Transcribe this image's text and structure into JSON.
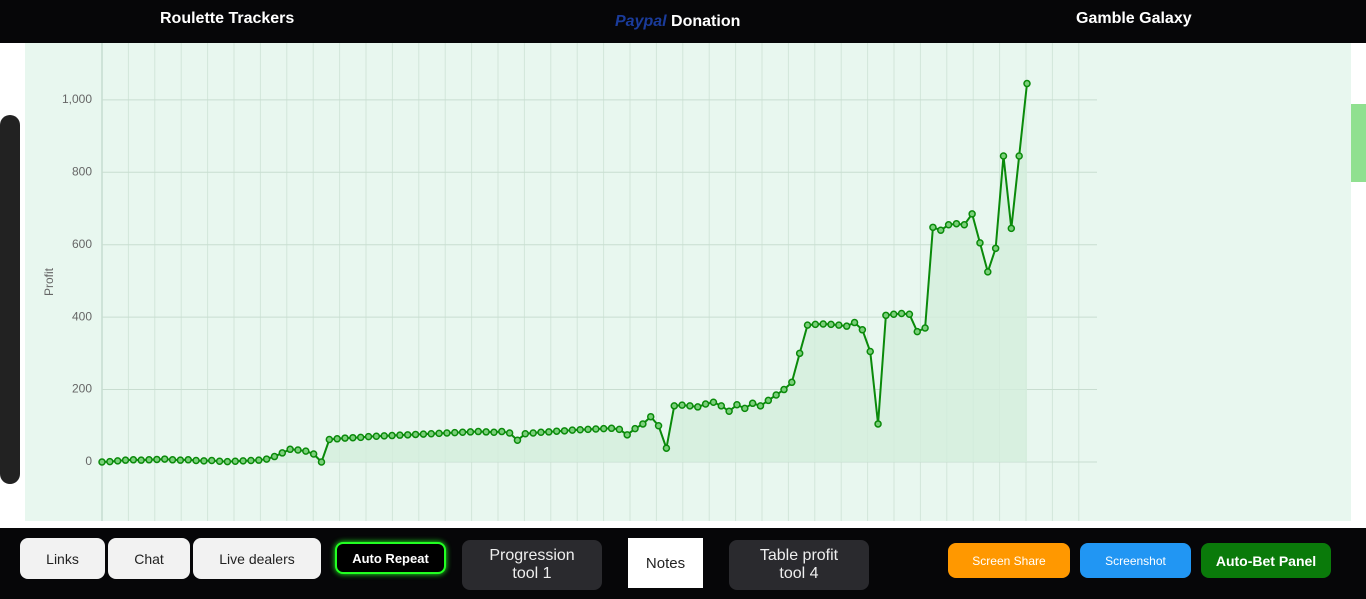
{
  "header": {
    "left": "Roulette Trackers",
    "brand": "Paypal",
    "center": "Donation",
    "right": "Gamble Galaxy"
  },
  "chart_data": {
    "type": "line",
    "y_label": "Profit",
    "color": "#0a8a0a",
    "fill": "#d3eedc",
    "values": [
      0,
      1,
      3,
      5,
      6,
      5,
      6,
      7,
      8,
      6,
      5,
      6,
      4,
      3,
      4,
      2,
      1,
      2,
      3,
      4,
      5,
      8,
      15,
      25,
      35,
      33,
      30,
      22,
      0,
      62,
      64,
      66,
      67,
      68,
      70,
      71,
      72,
      73,
      74,
      75,
      76,
      77,
      78,
      79,
      80,
      81,
      82,
      83,
      84,
      83,
      82,
      84,
      80,
      60,
      78,
      80,
      82,
      83,
      85,
      86,
      88,
      89,
      90,
      91,
      92,
      93,
      90,
      75,
      92,
      105,
      125,
      100,
      38,
      155,
      157,
      155,
      152,
      160,
      165,
      155,
      140,
      158,
      148,
      162,
      155,
      170,
      185,
      200,
      220,
      300,
      378,
      380,
      381,
      380,
      378,
      375,
      385,
      365,
      305,
      105,
      405,
      408,
      410,
      408,
      360,
      370,
      648,
      640,
      655,
      658,
      655,
      685,
      605,
      525,
      590,
      845,
      645,
      845,
      1045
    ],
    "ylim": [
      -163,
      1157
    ],
    "yticks": [
      0,
      200,
      400,
      600,
      800,
      {
        "value": 1000,
        "label": "1,000"
      }
    ],
    "grid": true
  },
  "buttons": [
    "Links",
    "Chat",
    "Live dealers",
    "Auto Repeat",
    "Progression tool 1",
    "Notes",
    "Table profit tool 4",
    "Screen Share",
    "Screenshot",
    "Auto-Bet Panel"
  ]
}
